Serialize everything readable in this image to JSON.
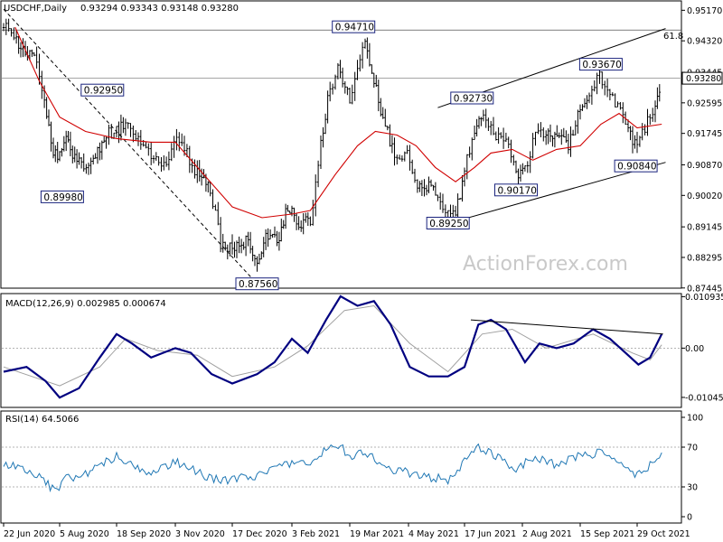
{
  "chart_data": [
    {
      "type": "bar",
      "kind": "ohlc-price",
      "title": "USDCHF,Daily",
      "ohlc_readout": "0.93294 0.93343 0.93148 0.93280",
      "current_price_label": "0.93280",
      "ylim": [
        0.8749,
        0.9538
      ],
      "y_ticks": [
        0.9517,
        0.9432,
        0.93445,
        0.92595,
        0.91745,
        0.9087,
        0.9002,
        0.89145,
        0.88295,
        0.87445
      ],
      "y_tick_labels": [
        "0.95170",
        "0.94320",
        "0.93445",
        "0.92595",
        "0.91745",
        "0.90870",
        "0.90020",
        "0.89145",
        "0.88295",
        "0.87445"
      ],
      "series": [
        {
          "name": "price-path-approx",
          "points": [
            [
              "2020-06-22",
              0.948
            ],
            [
              "2020-07-02",
              0.944
            ],
            [
              "2020-07-09",
              0.939
            ],
            [
              "2020-07-16",
              0.939
            ],
            [
              "2020-07-24",
              0.926
            ],
            [
              "2020-07-31",
              0.912
            ],
            [
              "2020-08-05",
              0.911
            ],
            [
              "2020-08-10",
              0.915
            ],
            [
              "2020-08-20",
              0.909
            ],
            [
              "2020-08-31",
              0.91
            ],
            [
              "2020-09-10",
              0.917
            ],
            [
              "2020-09-18",
              0.918
            ],
            [
              "2020-09-25",
              0.92
            ],
            [
              "2020-10-05",
              0.916
            ],
            [
              "2020-10-15",
              0.911
            ],
            [
              "2020-10-25",
              0.908
            ],
            [
              "2020-11-04",
              0.915
            ],
            [
              "2020-11-12",
              0.912
            ],
            [
              "2020-11-20",
              0.906
            ],
            [
              "2020-11-30",
              0.902
            ],
            [
              "2020-12-08",
              0.887
            ],
            [
              "2020-12-17",
              0.885
            ],
            [
              "2020-12-28",
              0.888
            ],
            [
              "2021-01-06",
              0.88
            ],
            [
              "2021-01-13",
              0.89
            ],
            [
              "2021-01-22",
              0.887
            ],
            [
              "2021-01-29",
              0.895
            ],
            [
              "2021-02-03",
              0.896
            ],
            [
              "2021-02-10",
              0.892
            ],
            [
              "2021-02-17",
              0.893
            ],
            [
              "2021-02-25",
              0.915
            ],
            [
              "2021-03-04",
              0.93
            ],
            [
              "2021-03-10",
              0.935
            ],
            [
              "2021-03-19",
              0.927
            ],
            [
              "2021-03-25",
              0.935
            ],
            [
              "2021-03-31",
              0.943
            ],
            [
              "2021-04-07",
              0.932
            ],
            [
              "2021-04-14",
              0.921
            ],
            [
              "2021-04-23",
              0.912
            ],
            [
              "2021-05-03",
              0.912
            ],
            [
              "2021-05-11",
              0.902
            ],
            [
              "2021-05-20",
              0.903
            ],
            [
              "2021-05-27",
              0.9
            ],
            [
              "2021-06-04",
              0.896
            ],
            [
              "2021-06-10",
              0.895
            ],
            [
              "2021-06-17",
              0.907
            ],
            [
              "2021-06-25",
              0.919
            ],
            [
              "2021-07-02",
              0.922
            ],
            [
              "2021-07-12",
              0.917
            ],
            [
              "2021-07-20",
              0.915
            ],
            [
              "2021-07-28",
              0.906
            ],
            [
              "2021-08-04",
              0.907
            ],
            [
              "2021-08-12",
              0.917
            ],
            [
              "2021-08-20",
              0.917
            ],
            [
              "2021-08-30",
              0.916
            ],
            [
              "2021-09-06",
              0.914
            ],
            [
              "2021-09-15",
              0.924
            ],
            [
              "2021-09-22",
              0.929
            ],
            [
              "2021-09-30",
              0.933
            ],
            [
              "2021-10-06",
              0.93
            ],
            [
              "2021-10-14",
              0.925
            ],
            [
              "2021-10-22",
              0.918
            ],
            [
              "2021-10-29",
              0.913
            ],
            [
              "2021-11-04",
              0.919
            ],
            [
              "2021-11-12",
              0.926
            ],
            [
              "2021-11-17",
              0.9328
            ]
          ]
        },
        {
          "name": "moving-average-approx",
          "points": [
            [
              "2020-07-01",
              0.947
            ],
            [
              "2020-07-20",
              0.932
            ],
            [
              "2020-08-05",
              0.922
            ],
            [
              "2020-08-25",
              0.918
            ],
            [
              "2020-09-18",
              0.916
            ],
            [
              "2020-10-15",
              0.915
            ],
            [
              "2020-11-03",
              0.915
            ],
            [
              "2020-11-25",
              0.906
            ],
            [
              "2020-12-17",
              0.897
            ],
            [
              "2021-01-10",
              0.894
            ],
            [
              "2021-02-03",
              0.895
            ],
            [
              "2021-02-17",
              0.896
            ],
            [
              "2021-03-08",
              0.906
            ],
            [
              "2021-03-25",
              0.914
            ],
            [
              "2021-04-08",
              0.918
            ],
            [
              "2021-04-25",
              0.917
            ],
            [
              "2021-05-10",
              0.914
            ],
            [
              "2021-05-25",
              0.908
            ],
            [
              "2021-06-10",
              0.904
            ],
            [
              "2021-06-25",
              0.908
            ],
            [
              "2021-07-08",
              0.912
            ],
            [
              "2021-07-25",
              0.913
            ],
            [
              "2021-08-10",
              0.91
            ],
            [
              "2021-08-28",
              0.913
            ],
            [
              "2021-09-15",
              0.914
            ],
            [
              "2021-10-01",
              0.92
            ],
            [
              "2021-10-15",
              0.923
            ],
            [
              "2021-10-29",
              0.919
            ],
            [
              "2021-11-17",
              0.92
            ]
          ]
        }
      ],
      "annotations": [
        {
          "text": "0.94710",
          "x": "2021-03-22",
          "y": 0.9471
        },
        {
          "text": "0.93670",
          "x": "2021-10-01",
          "y": 0.9367
        },
        {
          "text": "0.92950",
          "x": "2020-09-07",
          "y": 0.9295
        },
        {
          "text": "0.92730",
          "x": "2021-06-23",
          "y": 0.9273
        },
        {
          "text": "0.89980",
          "x": "2020-08-07",
          "y": 0.8998
        },
        {
          "text": "0.90170",
          "x": "2021-07-28",
          "y": 0.9017
        },
        {
          "text": "0.90840",
          "x": "2021-10-28",
          "y": 0.9084
        },
        {
          "text": "0.89250",
          "x": "2021-06-04",
          "y": 0.8925
        },
        {
          "text": "0.87560",
          "x": "2021-01-06",
          "y": 0.8756
        }
      ],
      "fib_label": "61.8",
      "fib_level": 0.9462,
      "horizontal_level": 0.9328,
      "trendlines": [
        {
          "from": [
            "2020-06-22",
            0.952
          ],
          "to": [
            "2021-01-06",
            0.8756
          ],
          "style": "dashed"
        },
        {
          "from": [
            "2021-05-27",
            0.9246
          ],
          "to": [
            "2021-11-20",
            0.9466
          ],
          "style": "solid"
        },
        {
          "from": [
            "2021-06-04",
            0.8924
          ],
          "to": [
            "2021-11-20",
            0.9094
          ],
          "style": "solid"
        }
      ],
      "watermark": "ActionForex.com"
    },
    {
      "type": "line",
      "title": "MACD(12,26,9) 0.002985 0.000674",
      "ylim": [
        -0.0122,
        0.0112
      ],
      "y_tick_labels": [
        "0.010935",
        "0.00",
        "-0.010459"
      ],
      "y_ticks": [
        0.010935,
        0.0,
        -0.010459
      ],
      "series": [
        {
          "name": "MACD",
          "points": [
            [
              "2020-06-22",
              -0.005
            ],
            [
              "2020-07-10",
              -0.004
            ],
            [
              "2020-07-25",
              -0.007
            ],
            [
              "2020-08-05",
              -0.0105
            ],
            [
              "2020-08-20",
              -0.0085
            ],
            [
              "2020-09-05",
              -0.002
            ],
            [
              "2020-09-18",
              0.003
            ],
            [
              "2020-09-30",
              0.001
            ],
            [
              "2020-10-15",
              -0.002
            ],
            [
              "2020-11-03",
              0.0
            ],
            [
              "2020-11-15",
              -0.001
            ],
            [
              "2020-12-01",
              -0.0055
            ],
            [
              "2020-12-17",
              -0.0075
            ],
            [
              "2021-01-06",
              -0.0055
            ],
            [
              "2021-01-20",
              -0.003
            ],
            [
              "2021-02-03",
              0.002
            ],
            [
              "2021-02-15",
              -0.001
            ],
            [
              "2021-03-01",
              0.006
            ],
            [
              "2021-03-12",
              0.011
            ],
            [
              "2021-03-25",
              0.009
            ],
            [
              "2021-04-07",
              0.01
            ],
            [
              "2021-04-20",
              0.005
            ],
            [
              "2021-05-05",
              -0.004
            ],
            [
              "2021-05-20",
              -0.006
            ],
            [
              "2021-06-04",
              -0.006
            ],
            [
              "2021-06-17",
              -0.004
            ],
            [
              "2021-06-28",
              0.005
            ],
            [
              "2021-07-08",
              0.006
            ],
            [
              "2021-07-20",
              0.004
            ],
            [
              "2021-08-04",
              -0.003
            ],
            [
              "2021-08-15",
              0.001
            ],
            [
              "2021-08-28",
              0.0
            ],
            [
              "2021-09-10",
              0.001
            ],
            [
              "2021-09-25",
              0.004
            ],
            [
              "2021-10-08",
              0.002
            ],
            [
              "2021-10-20",
              -0.001
            ],
            [
              "2021-10-30",
              -0.0035
            ],
            [
              "2021-11-08",
              -0.002
            ],
            [
              "2021-11-17",
              0.003
            ]
          ]
        },
        {
          "name": "Signal",
          "points": [
            [
              "2020-06-22",
              -0.004
            ],
            [
              "2020-08-05",
              -0.008
            ],
            [
              "2020-09-05",
              -0.004
            ],
            [
              "2020-09-25",
              0.002
            ],
            [
              "2020-10-20",
              -0.0005
            ],
            [
              "2020-11-20",
              -0.0015
            ],
            [
              "2020-12-17",
              -0.006
            ],
            [
              "2021-01-20",
              -0.004
            ],
            [
              "2021-02-15",
              0.0005
            ],
            [
              "2021-03-15",
              0.008
            ],
            [
              "2021-04-07",
              0.009
            ],
            [
              "2021-05-05",
              0.001
            ],
            [
              "2021-06-04",
              -0.005
            ],
            [
              "2021-07-01",
              0.003
            ],
            [
              "2021-07-25",
              0.004
            ],
            [
              "2021-08-20",
              0.0
            ],
            [
              "2021-09-25",
              0.003
            ],
            [
              "2021-10-25",
              -0.001
            ],
            [
              "2021-11-08",
              -0.0025
            ],
            [
              "2021-11-17",
              0.0007
            ]
          ]
        }
      ],
      "trendline": {
        "from": [
          "2021-06-22",
          0.006
        ],
        "to": [
          "2021-11-18",
          0.003
        ]
      }
    },
    {
      "type": "line",
      "title": "RSI(14) 64.5066",
      "ylim": [
        0,
        100
      ],
      "y_ticks": [
        100,
        70,
        30,
        0
      ],
      "y_tick_labels": [
        "100",
        "70",
        "30",
        "0"
      ],
      "levels": [
        70,
        30
      ],
      "series": [
        {
          "name": "RSI",
          "points": [
            [
              "2020-06-22",
              52
            ],
            [
              "2020-07-05",
              50
            ],
            [
              "2020-07-20",
              40
            ],
            [
              "2020-08-01",
              26
            ],
            [
              "2020-08-10",
              38
            ],
            [
              "2020-08-25",
              42
            ],
            [
              "2020-09-10",
              55
            ],
            [
              "2020-09-18",
              62
            ],
            [
              "2020-10-01",
              50
            ],
            [
              "2020-10-15",
              45
            ],
            [
              "2020-11-03",
              55
            ],
            [
              "2020-11-15",
              48
            ],
            [
              "2020-12-01",
              38
            ],
            [
              "2020-12-17",
              37
            ],
            [
              "2021-01-06",
              42
            ],
            [
              "2021-01-20",
              48
            ],
            [
              "2021-02-03",
              55
            ],
            [
              "2021-02-17",
              52
            ],
            [
              "2021-03-01",
              68
            ],
            [
              "2021-03-12",
              72
            ],
            [
              "2021-03-19",
              58
            ],
            [
              "2021-03-31",
              66
            ],
            [
              "2021-04-15",
              48
            ],
            [
              "2021-05-05",
              44
            ],
            [
              "2021-05-20",
              40
            ],
            [
              "2021-06-04",
              37
            ],
            [
              "2021-06-17",
              55
            ],
            [
              "2021-06-28",
              70
            ],
            [
              "2021-07-10",
              62
            ],
            [
              "2021-07-28",
              48
            ],
            [
              "2021-08-10",
              60
            ],
            [
              "2021-08-28",
              52
            ],
            [
              "2021-09-15",
              62
            ],
            [
              "2021-09-30",
              64
            ],
            [
              "2021-10-15",
              52
            ],
            [
              "2021-10-29",
              42
            ],
            [
              "2021-11-08",
              52
            ],
            [
              "2021-11-17",
              64.5
            ]
          ]
        }
      ]
    }
  ],
  "x_axis": {
    "labels": [
      "22 Jun 2020",
      "5 Aug 2020",
      "18 Sep 2020",
      "3 Nov 2020",
      "17 Dec 2020",
      "3 Feb 2021",
      "19 Mar 2021",
      "4 May 2021",
      "17 Jun 2021",
      "2 Aug 2021",
      "15 Sep 2021",
      "29 Oct 2021"
    ],
    "dates": [
      "2020-06-22",
      "2020-08-05",
      "2020-09-18",
      "2020-11-03",
      "2020-12-17",
      "2021-02-03",
      "2021-03-19",
      "2021-05-04",
      "2021-06-17",
      "2021-08-02",
      "2021-09-15",
      "2021-10-29"
    ]
  },
  "colors": {
    "price": "#000000",
    "moving_average": "#d00000",
    "macd": "#000080",
    "signal": "#a0a0a0",
    "rsi": "#1f77b4",
    "grid": "#c0c0c0",
    "watermark": "#c9c9c9"
  }
}
